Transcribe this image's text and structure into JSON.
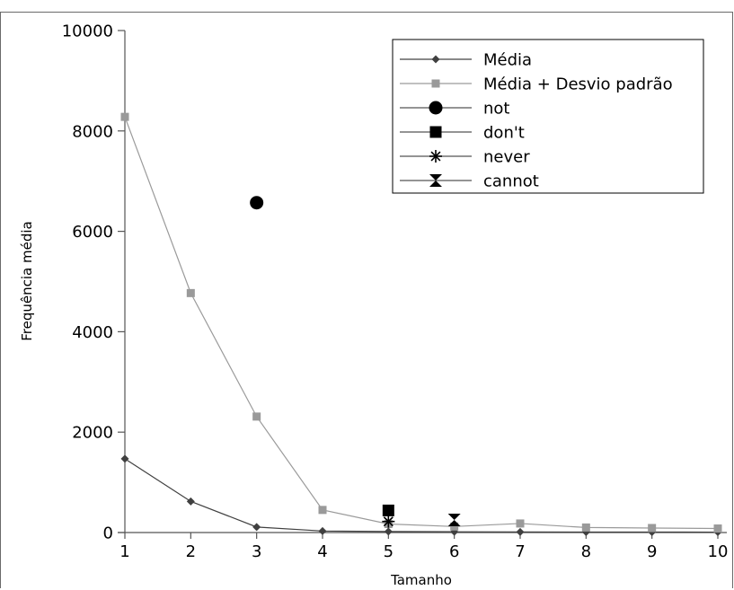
{
  "chart_data": {
    "type": "line",
    "xlabel": "Tamanho",
    "ylabel": "Frequência média",
    "xlim": [
      1,
      10
    ],
    "ylim": [
      0,
      10000
    ],
    "x_ticks": [
      "1",
      "2",
      "3",
      "4",
      "5",
      "6",
      "7",
      "8",
      "9",
      "10"
    ],
    "y_ticks": [
      "0",
      "2000",
      "4000",
      "6000",
      "8000",
      "10000"
    ],
    "grid": false,
    "legend_position": "top-right",
    "series": [
      {
        "name": "Média",
        "marker": "diamond",
        "color": "#404040",
        "line": true,
        "x": [
          1,
          2,
          3,
          4,
          5,
          6,
          7,
          8,
          9,
          10
        ],
        "y": [
          1470,
          620,
          110,
          30,
          20,
          15,
          12,
          10,
          10,
          8
        ]
      },
      {
        "name": "Média + Desvio padrão",
        "marker": "square",
        "color": "#9a9a9a",
        "line": true,
        "x": [
          1,
          2,
          3,
          4,
          5,
          6,
          7,
          8,
          9,
          10
        ],
        "y": [
          8280,
          4770,
          2310,
          450,
          170,
          120,
          180,
          100,
          90,
          80
        ]
      },
      {
        "name": "not",
        "marker": "circle",
        "color": "#000000",
        "line": false,
        "x": [
          3
        ],
        "y": [
          6570
        ]
      },
      {
        "name": "don't",
        "marker": "square",
        "color": "#000000",
        "line": false,
        "x": [
          5
        ],
        "y": [
          440
        ]
      },
      {
        "name": "never",
        "marker": "asterisk",
        "color": "#000000",
        "line": false,
        "x": [
          5
        ],
        "y": [
          220
        ]
      },
      {
        "name": "cannot",
        "marker": "bowtie",
        "color": "#000000",
        "line": false,
        "x": [
          6
        ],
        "y": [
          250
        ]
      }
    ]
  }
}
